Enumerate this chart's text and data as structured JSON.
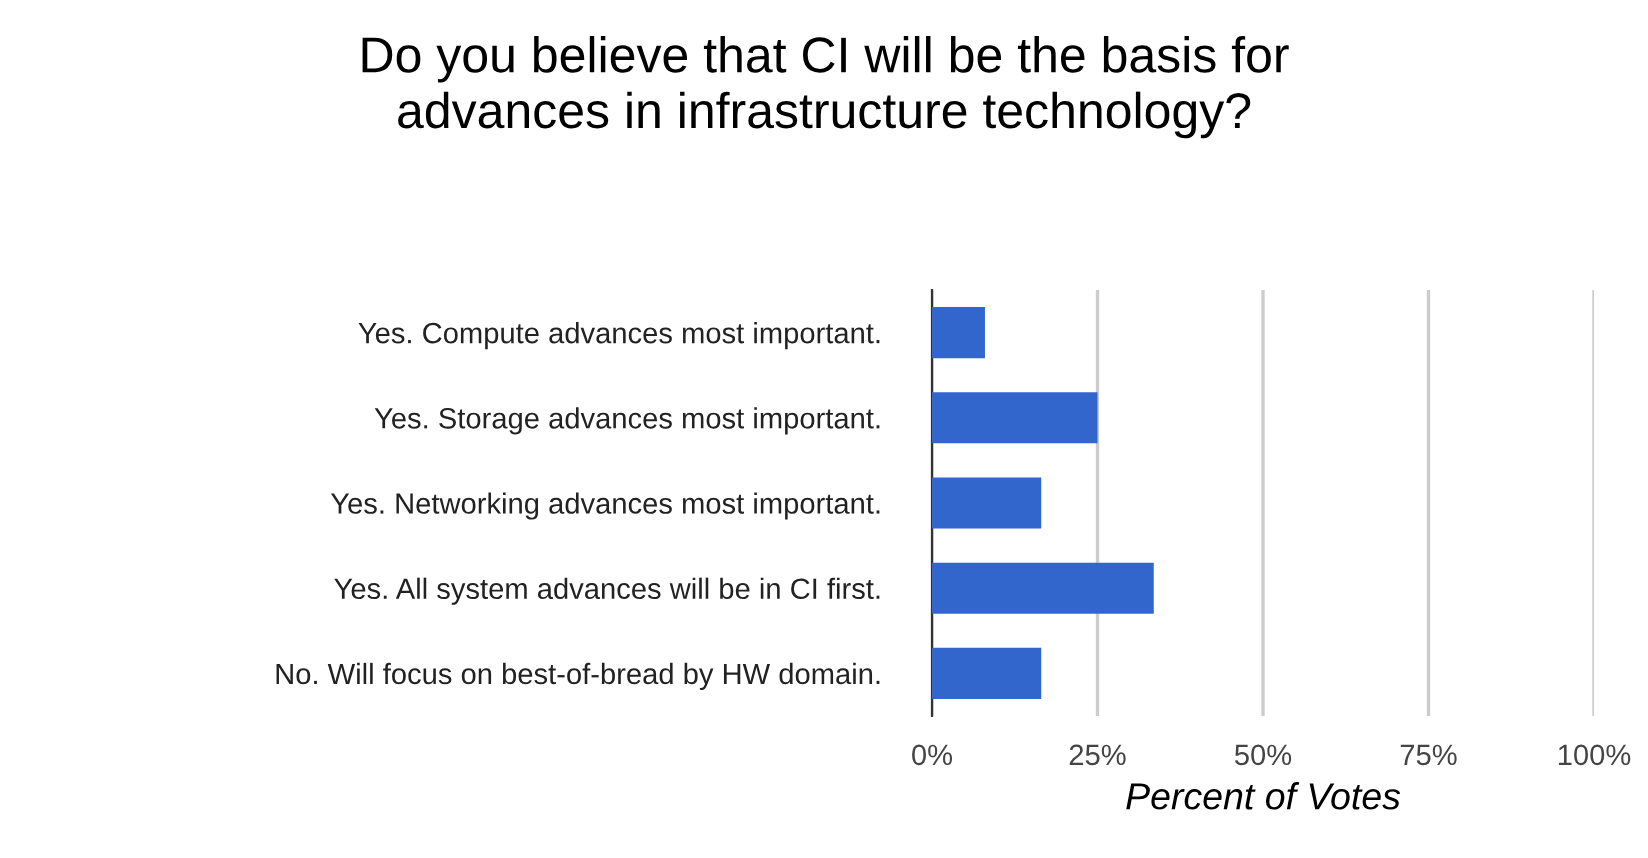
{
  "chart_data": {
    "type": "bar",
    "orientation": "horizontal",
    "title": "Do you believe that CI will be the basis for\nadvances in infrastructure technology?",
    "xlabel": "Percent of Votes",
    "categories": [
      "Yes. Compute advances most important.",
      "Yes. Storage advances most important.",
      "Yes. Networking advances most important.",
      "Yes. All system advances will be in CI first.",
      "No. Will focus on best-of-bread by HW domain."
    ],
    "values": [
      8,
      25,
      16.5,
      33.5,
      16.5
    ],
    "color": "#3366cc",
    "xlim": [
      0,
      100
    ],
    "xticks": [
      {
        "value": 0,
        "label": "0%"
      },
      {
        "value": 25,
        "label": "25%"
      },
      {
        "value": 50,
        "label": "50%"
      },
      {
        "value": 75,
        "label": "75%"
      },
      {
        "value": 100,
        "label": "100%"
      }
    ],
    "grid": "x",
    "legend": false
  }
}
